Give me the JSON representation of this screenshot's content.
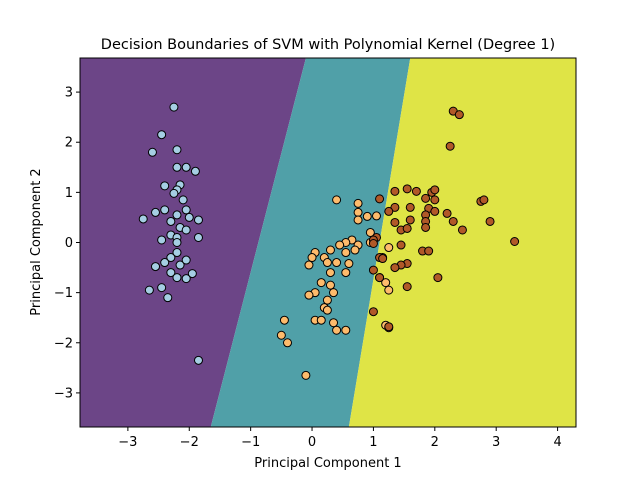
{
  "chart_data": {
    "type": "scatter",
    "title": "Decision Boundaries of SVM with Polynomial Kernel (Degree 1)",
    "xlabel": "Principal Component 1",
    "ylabel": "Principal Component 2",
    "xlim": [
      -3.78,
      4.3
    ],
    "ylim": [
      -3.68,
      3.68
    ],
    "xticks": [
      -3,
      -2,
      -1,
      0,
      1,
      2,
      3,
      4
    ],
    "yticks": [
      -3,
      -2,
      -1,
      0,
      1,
      2,
      3
    ],
    "grid": false,
    "legend": "none",
    "regions": [
      {
        "class": 0,
        "color": "#6c4587",
        "polygon": [
          [
            -3.78,
            -3.68
          ],
          [
            -1.65,
            -3.68
          ],
          [
            -0.1,
            3.68
          ],
          [
            -3.78,
            3.68
          ]
        ]
      },
      {
        "class": 1,
        "color": "#50a0a8",
        "polygon": [
          [
            -1.65,
            -3.68
          ],
          [
            0.6,
            -3.68
          ],
          [
            1.6,
            3.68
          ],
          [
            -0.1,
            3.68
          ]
        ]
      },
      {
        "class": 2,
        "color": "#dfe446",
        "polygon": [
          [
            0.6,
            -3.68
          ],
          [
            4.3,
            -3.68
          ],
          [
            4.3,
            3.68
          ],
          [
            1.6,
            3.68
          ]
        ]
      }
    ],
    "series": [
      {
        "color": "#a5cee3",
        "points": [
          [
            -2.25,
            2.7
          ],
          [
            -2.45,
            2.15
          ],
          [
            -2.2,
            1.85
          ],
          [
            -2.6,
            1.8
          ],
          [
            -2.2,
            1.5
          ],
          [
            -2.05,
            1.5
          ],
          [
            -1.9,
            1.42
          ],
          [
            -2.4,
            1.13
          ],
          [
            -2.15,
            1.15
          ],
          [
            -2.2,
            1.05
          ],
          [
            -2.25,
            0.98
          ],
          [
            -2.1,
            0.85
          ],
          [
            -2.05,
            0.65
          ],
          [
            -2.4,
            0.65
          ],
          [
            -2.55,
            0.6
          ],
          [
            -2.2,
            0.55
          ],
          [
            -2.0,
            0.5
          ],
          [
            -1.85,
            0.45
          ],
          [
            -2.75,
            0.47
          ],
          [
            -2.3,
            0.42
          ],
          [
            -2.15,
            0.3
          ],
          [
            -2.05,
            0.25
          ],
          [
            -2.3,
            0.15
          ],
          [
            -2.2,
            0.1
          ],
          [
            -1.85,
            0.1
          ],
          [
            -2.45,
            0.05
          ],
          [
            -2.2,
            0.0
          ],
          [
            -2.2,
            -0.2
          ],
          [
            -2.3,
            -0.3
          ],
          [
            -2.4,
            -0.4
          ],
          [
            -2.05,
            -0.35
          ],
          [
            -2.55,
            -0.48
          ],
          [
            -2.15,
            -0.45
          ],
          [
            -2.3,
            -0.6
          ],
          [
            -1.95,
            -0.62
          ],
          [
            -2.2,
            -0.7
          ],
          [
            -2.05,
            -0.72
          ],
          [
            -2.65,
            -0.95
          ],
          [
            -2.45,
            -0.9
          ],
          [
            -2.35,
            -1.1
          ],
          [
            -1.85,
            -2.35
          ]
        ]
      },
      {
        "color": "#fdbb6c",
        "points": [
          [
            0.4,
            0.85
          ],
          [
            0.75,
            0.78
          ],
          [
            0.75,
            0.6
          ],
          [
            0.9,
            0.52
          ],
          [
            1.05,
            0.53
          ],
          [
            0.75,
            0.45
          ],
          [
            0.95,
            0.2
          ],
          [
            0.65,
            0.05
          ],
          [
            0.55,
            0.0
          ],
          [
            0.45,
            -0.05
          ],
          [
            0.75,
            -0.05
          ],
          [
            0.95,
            0.0
          ],
          [
            0.7,
            -0.15
          ],
          [
            0.55,
            -0.2
          ],
          [
            0.3,
            -0.15
          ],
          [
            0.05,
            -0.2
          ],
          [
            0.2,
            -0.3
          ],
          [
            0.4,
            -0.4
          ],
          [
            0.25,
            -0.4
          ],
          [
            0.6,
            -0.42
          ],
          [
            -0.05,
            -0.45
          ],
          [
            0.0,
            -0.3
          ],
          [
            1.15,
            -0.3
          ],
          [
            1.25,
            -0.1
          ],
          [
            0.3,
            -0.6
          ],
          [
            0.55,
            -0.6
          ],
          [
            0.15,
            -0.8
          ],
          [
            0.3,
            -0.85
          ],
          [
            0.35,
            -1.0
          ],
          [
            0.05,
            -1.0
          ],
          [
            -0.05,
            -1.05
          ],
          [
            0.25,
            -1.15
          ],
          [
            0.2,
            -1.3
          ],
          [
            0.25,
            -1.35
          ],
          [
            0.05,
            -1.55
          ],
          [
            0.15,
            -1.55
          ],
          [
            -0.45,
            -1.55
          ],
          [
            0.35,
            -1.6
          ],
          [
            0.4,
            -1.75
          ],
          [
            0.55,
            -1.75
          ],
          [
            1.2,
            -1.65
          ],
          [
            1.25,
            -1.7
          ],
          [
            -0.5,
            -1.85
          ],
          [
            -0.4,
            -2.0
          ],
          [
            -0.1,
            -2.65
          ],
          [
            1.25,
            -0.95
          ],
          [
            1.2,
            -0.8
          ],
          [
            1.1,
            -0.7
          ]
        ]
      },
      {
        "color": "#b15928",
        "points": [
          [
            2.3,
            2.62
          ],
          [
            2.4,
            2.55
          ],
          [
            2.25,
            1.92
          ],
          [
            1.55,
            1.07
          ],
          [
            1.7,
            1.02
          ],
          [
            1.35,
            1.02
          ],
          [
            1.95,
            1.0
          ],
          [
            2.0,
            1.05
          ],
          [
            1.1,
            0.87
          ],
          [
            1.85,
            0.88
          ],
          [
            2.0,
            0.85
          ],
          [
            2.75,
            0.82
          ],
          [
            2.8,
            0.85
          ],
          [
            1.35,
            0.7
          ],
          [
            1.6,
            0.7
          ],
          [
            1.9,
            0.68
          ],
          [
            2.0,
            0.62
          ],
          [
            2.2,
            0.58
          ],
          [
            1.85,
            0.55
          ],
          [
            1.25,
            0.62
          ],
          [
            1.6,
            0.45
          ],
          [
            1.35,
            0.4
          ],
          [
            1.85,
            0.42
          ],
          [
            2.3,
            0.42
          ],
          [
            2.9,
            0.42
          ],
          [
            1.85,
            0.3
          ],
          [
            1.45,
            0.25
          ],
          [
            1.55,
            0.28
          ],
          [
            2.45,
            0.25
          ],
          [
            1.05,
            0.1
          ],
          [
            1.0,
            0.05
          ],
          [
            1.45,
            -0.05
          ],
          [
            1.0,
            -0.02
          ],
          [
            3.3,
            0.02
          ],
          [
            1.8,
            -0.17
          ],
          [
            1.9,
            -0.17
          ],
          [
            1.1,
            -0.3
          ],
          [
            1.15,
            -0.32
          ],
          [
            1.55,
            -0.42
          ],
          [
            1.45,
            -0.45
          ],
          [
            1.35,
            -0.5
          ],
          [
            1.0,
            -0.55
          ],
          [
            1.1,
            -0.7
          ],
          [
            2.05,
            -0.7
          ],
          [
            1.55,
            -0.88
          ],
          [
            1.0,
            -1.38
          ],
          [
            1.25,
            -1.68
          ]
        ]
      }
    ]
  }
}
